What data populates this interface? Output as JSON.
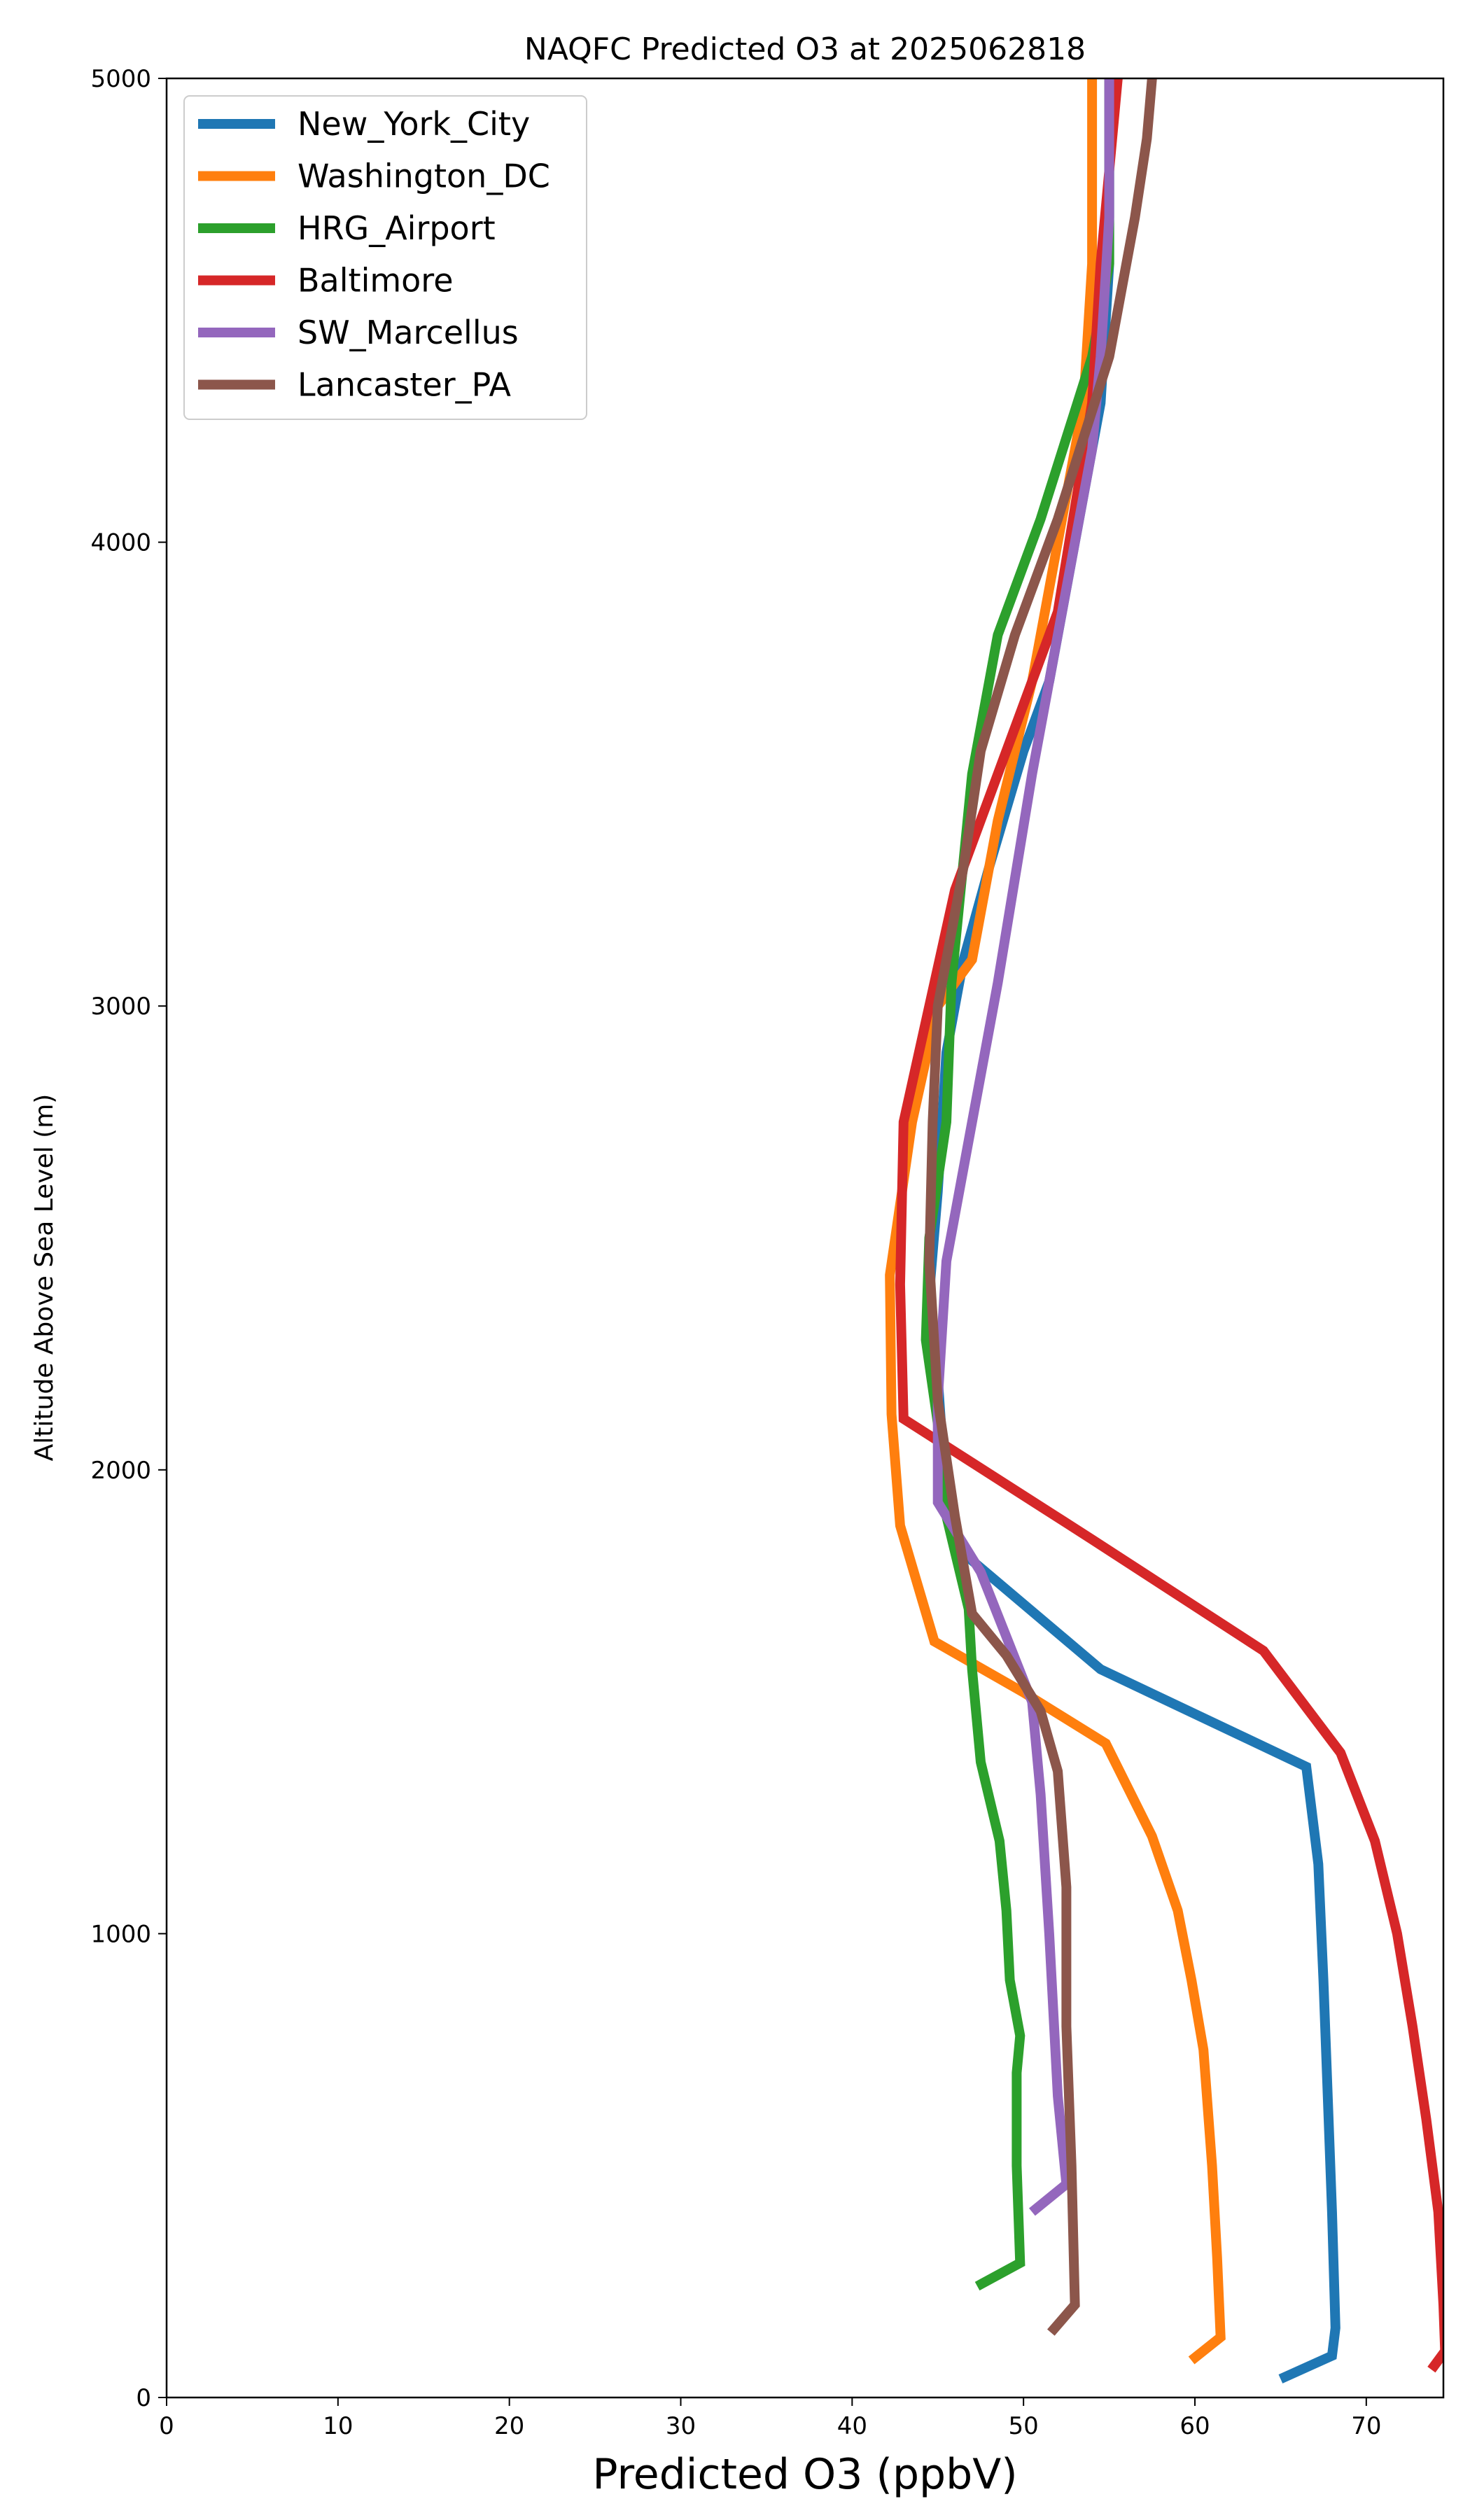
{
  "chart_data": {
    "type": "line",
    "title": "NAQFC Predicted O3 at 2025062818",
    "xlabel": "Predicted O3 (ppbV)",
    "ylabel": "Altitude Above Sea Level (m)",
    "xlim": [
      0,
      74.5
    ],
    "ylim": [
      0,
      5000
    ],
    "xticks": [
      0,
      10,
      20,
      30,
      40,
      50,
      60,
      70
    ],
    "yticks": [
      0,
      1000,
      2000,
      3000,
      4000,
      5000
    ],
    "xtick_labels": [
      "0",
      "10",
      "20",
      "30",
      "40",
      "50",
      "60",
      "70"
    ],
    "ytick_labels": [
      "0",
      "1000",
      "2000",
      "3000",
      "4000",
      "5000"
    ],
    "grid": false,
    "legend": "top-left",
    "series": [
      {
        "name": "New_York_City",
        "color": "#1f77b4",
        "points": [
          [
            65.0,
            40
          ],
          [
            68.0,
            90
          ],
          [
            68.2,
            150
          ],
          [
            68.0,
            400
          ],
          [
            67.8,
            600
          ],
          [
            67.5,
            900
          ],
          [
            67.2,
            1150
          ],
          [
            66.5,
            1360
          ],
          [
            54.5,
            1570
          ],
          [
            46.5,
            1820
          ],
          [
            45.5,
            1930
          ],
          [
            45.0,
            2200
          ],
          [
            44.5,
            2380
          ],
          [
            45.0,
            2600
          ],
          [
            45.5,
            2900
          ],
          [
            46.5,
            3100
          ],
          [
            48.0,
            3300
          ],
          [
            50.0,
            3550
          ],
          [
            51.5,
            3700
          ],
          [
            53.0,
            4000
          ],
          [
            54.5,
            4300
          ],
          [
            55.0,
            4600
          ],
          [
            55.0,
            5000
          ]
        ]
      },
      {
        "name": "Washington_DC",
        "color": "#ff7f0e",
        "points": [
          [
            59.8,
            80
          ],
          [
            61.5,
            130
          ],
          [
            61.3,
            300
          ],
          [
            61.0,
            500
          ],
          [
            60.5,
            750
          ],
          [
            59.8,
            900
          ],
          [
            59.0,
            1050
          ],
          [
            57.5,
            1210
          ],
          [
            54.8,
            1410
          ],
          [
            50.0,
            1520
          ],
          [
            44.8,
            1630
          ],
          [
            42.8,
            1880
          ],
          [
            42.3,
            2120
          ],
          [
            42.2,
            2420
          ],
          [
            43.5,
            2750
          ],
          [
            45.0,
            3000
          ],
          [
            47.0,
            3100
          ],
          [
            48.5,
            3400
          ],
          [
            50.5,
            3700
          ],
          [
            52.0,
            4000
          ],
          [
            53.5,
            4300
          ],
          [
            54.0,
            4600
          ],
          [
            54.0,
            5000
          ]
        ]
      },
      {
        "name": "HRG_Airport",
        "color": "#2ca02c",
        "points": [
          [
            47.3,
            240
          ],
          [
            49.8,
            290
          ],
          [
            49.6,
            500
          ],
          [
            49.6,
            700
          ],
          [
            49.8,
            780
          ],
          [
            49.2,
            900
          ],
          [
            49.0,
            1050
          ],
          [
            48.6,
            1200
          ],
          [
            47.5,
            1370
          ],
          [
            47.0,
            1570
          ],
          [
            46.8,
            1700
          ],
          [
            45.5,
            1900
          ],
          [
            45.0,
            2100
          ],
          [
            44.3,
            2280
          ],
          [
            44.5,
            2500
          ],
          [
            45.5,
            2750
          ],
          [
            45.8,
            3050
          ],
          [
            47.0,
            3500
          ],
          [
            48.5,
            3800
          ],
          [
            51.0,
            4050
          ],
          [
            54.0,
            4400
          ],
          [
            55.0,
            4600
          ],
          [
            55.0,
            5000
          ]
        ]
      },
      {
        "name": "Baltimore",
        "color": "#d62728",
        "points": [
          [
            73.8,
            60
          ],
          [
            74.6,
            100
          ],
          [
            74.5,
            200
          ],
          [
            74.2,
            400
          ],
          [
            73.5,
            600
          ],
          [
            72.7,
            800
          ],
          [
            71.8,
            1000
          ],
          [
            70.5,
            1200
          ],
          [
            68.5,
            1390
          ],
          [
            64.0,
            1610
          ],
          [
            54.0,
            1850
          ],
          [
            43.0,
            2110
          ],
          [
            42.8,
            2400
          ],
          [
            43.0,
            2750
          ],
          [
            44.5,
            3000
          ],
          [
            46.0,
            3250
          ],
          [
            48.5,
            3500
          ],
          [
            52.0,
            3850
          ],
          [
            54.0,
            4300
          ],
          [
            54.5,
            4600
          ],
          [
            55.5,
            5000
          ]
        ]
      },
      {
        "name": "SW_Marcellus",
        "color": "#9467bd",
        "points": [
          [
            50.5,
            400
          ],
          [
            52.5,
            460
          ],
          [
            52.0,
            650
          ],
          [
            51.5,
            1000
          ],
          [
            51.0,
            1300
          ],
          [
            50.5,
            1500
          ],
          [
            47.5,
            1780
          ],
          [
            45.0,
            1930
          ],
          [
            45.0,
            2150
          ],
          [
            45.5,
            2450
          ],
          [
            47.0,
            2750
          ],
          [
            48.5,
            3050
          ],
          [
            50.5,
            3500
          ],
          [
            52.0,
            3800
          ],
          [
            54.0,
            4200
          ],
          [
            54.5,
            4400
          ],
          [
            55.0,
            4700
          ],
          [
            55.0,
            5000
          ]
        ]
      },
      {
        "name": "Lancaster_PA",
        "color": "#8c564b",
        "points": [
          [
            51.6,
            140
          ],
          [
            53.0,
            200
          ],
          [
            52.8,
            500
          ],
          [
            52.5,
            800
          ],
          [
            52.5,
            1100
          ],
          [
            52.0,
            1350
          ],
          [
            51.0,
            1480
          ],
          [
            49.0,
            1600
          ],
          [
            47.0,
            1690
          ],
          [
            46.0,
            1900
          ],
          [
            45.0,
            2150
          ],
          [
            44.5,
            2450
          ],
          [
            44.7,
            2750
          ],
          [
            45.0,
            3000
          ],
          [
            46.5,
            3300
          ],
          [
            47.5,
            3550
          ],
          [
            49.5,
            3800
          ],
          [
            52.0,
            4050
          ],
          [
            55.0,
            4400
          ],
          [
            56.5,
            4700
          ],
          [
            57.2,
            4870
          ],
          [
            57.5,
            5000
          ]
        ]
      }
    ]
  }
}
